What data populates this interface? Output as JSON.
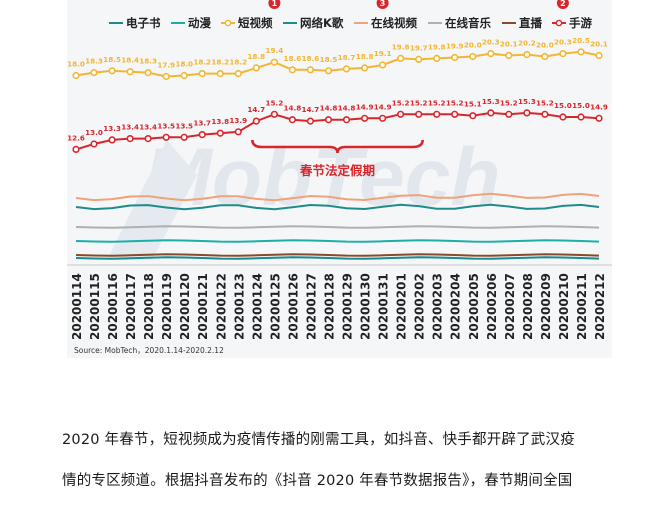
{
  "chart_data": {
    "type": "line",
    "x": [
      "20200114",
      "20200115",
      "20200116",
      "20200117",
      "20200118",
      "20200119",
      "20200120",
      "20200121",
      "20200122",
      "20200123",
      "20200124",
      "20200125",
      "20200126",
      "20200127",
      "20200128",
      "20200129",
      "20200130",
      "20200131",
      "20200201",
      "20200202",
      "20200203",
      "20200204",
      "20200205",
      "20200206",
      "20200207",
      "20200208",
      "20200209",
      "20200210",
      "20200211",
      "20200212"
    ],
    "series": [
      {
        "name": "电子书",
        "color": "#1a8a8e",
        "labeled": false,
        "values": [
          null,
          null,
          null,
          null,
          null,
          null,
          null,
          null,
          null,
          null,
          null,
          null,
          null,
          null,
          null,
          null,
          null,
          null,
          null,
          null,
          null,
          null,
          null,
          null,
          null,
          null,
          null,
          null,
          null,
          null
        ]
      },
      {
        "name": "动漫",
        "color": "#1ab0a8",
        "labeled": false,
        "values": [
          null,
          null,
          null,
          null,
          null,
          null,
          null,
          null,
          null,
          null,
          null,
          null,
          null,
          null,
          null,
          null,
          null,
          null,
          null,
          null,
          null,
          null,
          null,
          null,
          null,
          null,
          null,
          null,
          null,
          null
        ]
      },
      {
        "name": "短视频",
        "color": "#f2b632",
        "labeled": true,
        "values": [
          18.0,
          18.3,
          18.5,
          18.4,
          18.3,
          17.9,
          18.0,
          18.2,
          18.2,
          18.2,
          18.8,
          19.4,
          18.6,
          18.6,
          18.5,
          18.7,
          18.8,
          19.1,
          19.8,
          19.7,
          19.8,
          19.9,
          20.0,
          20.3,
          20.1,
          20.2,
          20.0,
          20.3,
          20.5,
          20.1
        ]
      },
      {
        "name": "网络K歌",
        "color": "#1f8c8a",
        "labeled": false,
        "values": [
          null,
          null,
          null,
          null,
          null,
          null,
          null,
          null,
          null,
          null,
          null,
          null,
          null,
          null,
          null,
          null,
          null,
          null,
          null,
          null,
          null,
          null,
          null,
          null,
          null,
          null,
          null,
          null,
          null,
          null
        ]
      },
      {
        "name": "在线视频",
        "color": "#f0a27a",
        "labeled": false,
        "values": [
          null,
          null,
          null,
          null,
          null,
          null,
          null,
          null,
          null,
          null,
          null,
          null,
          null,
          null,
          null,
          null,
          null,
          null,
          null,
          null,
          null,
          null,
          null,
          null,
          null,
          null,
          null,
          null,
          null,
          null
        ]
      },
      {
        "name": "在线音乐",
        "color": "#b0b0b0",
        "labeled": false,
        "values": [
          null,
          null,
          null,
          null,
          null,
          null,
          null,
          null,
          null,
          null,
          null,
          null,
          null,
          null,
          null,
          null,
          null,
          null,
          null,
          null,
          null,
          null,
          null,
          null,
          null,
          null,
          null,
          null,
          null,
          null
        ]
      },
      {
        "name": "直播",
        "color": "#8a4a2a",
        "labeled": false,
        "values": [
          null,
          null,
          null,
          null,
          null,
          null,
          null,
          null,
          null,
          null,
          null,
          null,
          null,
          null,
          null,
          null,
          null,
          null,
          null,
          null,
          null,
          null,
          null,
          null,
          null,
          null,
          null,
          null,
          null,
          null
        ]
      },
      {
        "name": "手游",
        "color": "#d8262b",
        "labeled": true,
        "values": [
          12.6,
          13.0,
          13.3,
          13.4,
          13.4,
          13.5,
          13.5,
          13.7,
          13.8,
          13.9,
          14.7,
          15.2,
          14.8,
          14.7,
          14.8,
          14.8,
          14.9,
          14.9,
          15.2,
          15.2,
          15.2,
          15.2,
          15.1,
          15.3,
          15.2,
          15.3,
          15.2,
          15.0,
          15.0,
          14.9
        ]
      }
    ],
    "markers": [
      {
        "x": "20200125",
        "label": "1",
        "color": "#d8262b"
      },
      {
        "x": "20200131",
        "label": "3",
        "color": "#d8262b"
      },
      {
        "x": "20200210",
        "label": "2",
        "color": "#d8262b"
      }
    ],
    "annotation": {
      "text": "春节法定假期",
      "from": "20200124",
      "to": "20200202",
      "color": "#d8262b"
    },
    "source": "Source:  MobTech，2020.1.14-2020.2.12",
    "watermark": "MobTech",
    "grid": false,
    "legend": "top"
  },
  "paragraph": {
    "line1": "2020 年春节，短视频成为疫情传播的刚需工具，如抖音、快手都开辟了武汉疫",
    "line2": "情的专区频道。根据抖音发布的《抖音 2020 年春节数据报告》，春节期间全国"
  }
}
